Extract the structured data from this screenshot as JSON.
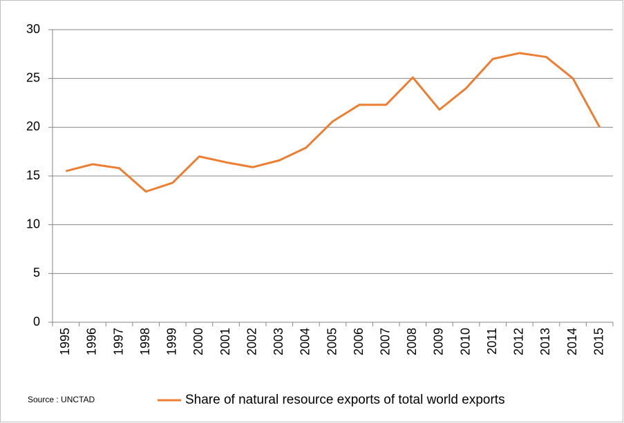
{
  "chart_data": {
    "type": "line",
    "categories": [
      "1995",
      "1996",
      "1997",
      "1998",
      "1999",
      "2000",
      "2001",
      "2002",
      "2003",
      "2004",
      "2005",
      "2006",
      "2007",
      "2008",
      "2009",
      "2010",
      "2011",
      "2012",
      "2013",
      "2014",
      "2015"
    ],
    "series": [
      {
        "name": "Share of natural resource exports of total world exports",
        "color": "#ed7d31",
        "values": [
          15.5,
          16.2,
          15.8,
          13.4,
          14.3,
          17.0,
          16.4,
          15.9,
          16.6,
          17.9,
          20.6,
          22.3,
          22.3,
          25.1,
          21.8,
          24.0,
          27.0,
          27.6,
          27.2,
          25.0,
          20.0
        ]
      }
    ],
    "ylim": [
      0,
      30
    ],
    "yticks": [
      0,
      5,
      10,
      15,
      20,
      25,
      30
    ],
    "grid": true,
    "source": "Source : UNCTAD",
    "legend": "bottom"
  }
}
